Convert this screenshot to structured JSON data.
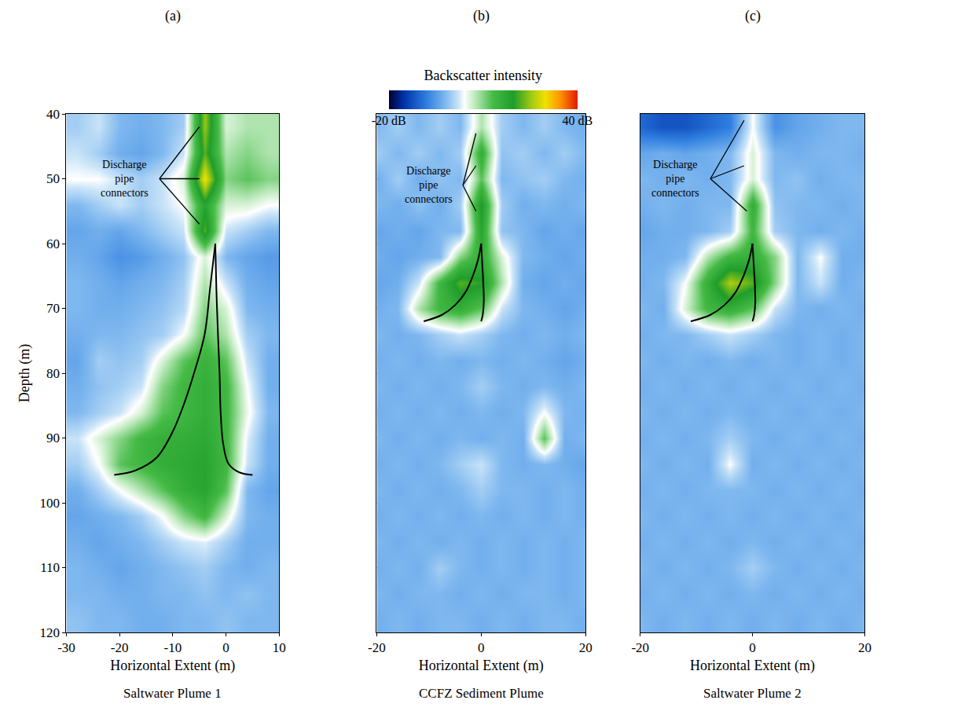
{
  "colorbar": {
    "title": "Backscatter intensity",
    "range": [
      -20,
      40
    ],
    "ticks": [
      {
        "value": -20,
        "label": "-20 dB"
      },
      {
        "value": 40,
        "label": "40 dB"
      }
    ]
  },
  "chart_data": [
    {
      "type": "heatmap",
      "panel": "(a)",
      "title": "Saltwater Plume 1",
      "xlabel": "Horizontal Extent (m)",
      "ylabel": "Depth (m)",
      "xlim": [
        -30,
        10
      ],
      "ylim": [
        120,
        40
      ],
      "xticks": [
        -30,
        -20,
        -10,
        0,
        10
      ],
      "yticks": [
        40,
        50,
        60,
        70,
        80,
        90,
        100,
        110,
        120
      ],
      "grid": true,
      "x": [
        -28,
        -24,
        -20,
        -16,
        -12,
        -8,
        -4,
        0,
        4,
        8
      ],
      "y": [
        42,
        46,
        50,
        54,
        58,
        62,
        66,
        70,
        74,
        78,
        82,
        86,
        90,
        94,
        98,
        102,
        106,
        110,
        114,
        118
      ],
      "z": [
        [
          0,
          2,
          -2,
          -3,
          -2,
          0,
          25,
          6,
          8,
          8
        ],
        [
          2,
          0,
          -3,
          -4,
          -2,
          2,
          22,
          8,
          10,
          8
        ],
        [
          4,
          4,
          2,
          0,
          2,
          6,
          30,
          10,
          12,
          10
        ],
        [
          -2,
          0,
          2,
          0,
          2,
          4,
          18,
          6,
          6,
          4
        ],
        [
          -4,
          -3,
          -4,
          -2,
          0,
          2,
          22,
          2,
          0,
          -2
        ],
        [
          -3,
          -4,
          -6,
          -5,
          -3,
          -1,
          6,
          -2,
          -4,
          -5
        ],
        [
          -2,
          -3,
          -4,
          -3,
          -2,
          0,
          8,
          2,
          -3,
          -4
        ],
        [
          -2,
          -3,
          -3,
          -2,
          -1,
          1,
          10,
          6,
          -2,
          -3
        ],
        [
          -3,
          -2,
          -2,
          -1,
          0,
          4,
          12,
          8,
          0,
          -2
        ],
        [
          -4,
          0,
          -1,
          0,
          6,
          12,
          15,
          12,
          2,
          -3
        ],
        [
          -3,
          -1,
          0,
          2,
          10,
          14,
          16,
          14,
          4,
          -3
        ],
        [
          -2,
          0,
          2,
          6,
          12,
          14,
          16,
          14,
          5,
          -2
        ],
        [
          2,
          6,
          10,
          14,
          16,
          16,
          17,
          14,
          3,
          -3
        ],
        [
          0,
          4,
          12,
          14,
          16,
          17,
          18,
          14,
          2,
          -3
        ],
        [
          -3,
          0,
          4,
          8,
          12,
          16,
          18,
          12,
          -2,
          -4
        ],
        [
          -4,
          -3,
          -2,
          0,
          4,
          10,
          14,
          6,
          -2,
          -3
        ],
        [
          -3,
          -4,
          -3,
          -2,
          0,
          2,
          3,
          0,
          -3,
          -3
        ],
        [
          -2,
          -3,
          -4,
          -3,
          -2,
          -1,
          0,
          -2,
          -3,
          -2
        ],
        [
          -2,
          -2,
          -3,
          -3,
          -2,
          -2,
          -1,
          -2,
          -1,
          -2
        ],
        [
          -1,
          -2,
          -2,
          -3,
          -3,
          -2,
          -2,
          -1,
          -2,
          -2
        ]
      ],
      "lines": [
        {
          "color": "#000000",
          "x": [
            -2,
            -3,
            -4,
            -6,
            -8,
            -10,
            -13,
            -17,
            -21
          ],
          "y": [
            60,
            67,
            74,
            80,
            85,
            89,
            93,
            95,
            95.7
          ]
        },
        {
          "color": "#000000",
          "x": [
            -2,
            -1.8,
            -1.5,
            -1.2,
            -1,
            -0.5,
            0.5,
            2.5,
            5
          ],
          "y": [
            60,
            67,
            74,
            80,
            86,
            91,
            94,
            95.3,
            95.7
          ]
        }
      ],
      "annotations": [
        {
          "text": "Discharge pipe connectors",
          "x": -19,
          "y": 50,
          "leader_from": [
            -12.5,
            50
          ],
          "targets": [
            [
              -5,
              42
            ],
            [
              -5,
              50
            ],
            [
              -5,
              57
            ]
          ]
        }
      ]
    },
    {
      "type": "heatmap",
      "panel": "(b)",
      "title": "CCFZ Sediment Plume",
      "xlabel": "Horizontal Extent (m)",
      "xlim": [
        -20,
        20
      ],
      "ylim": [
        120,
        40
      ],
      "xticks": [
        -20,
        0,
        20
      ],
      "yticks": [
        40,
        50,
        60,
        70,
        80,
        90,
        100,
        110,
        120
      ],
      "grid": true,
      "tick_labels": "x",
      "x": [
        -20,
        -16,
        -12,
        -8,
        -4,
        0,
        4,
        8,
        12,
        16,
        20
      ],
      "y": [
        42,
        46,
        50,
        54,
        58,
        62,
        66,
        70,
        74,
        78,
        82,
        86,
        90,
        94,
        98,
        102,
        106,
        110,
        114,
        118
      ],
      "z": [
        [
          -2,
          0,
          -2,
          0,
          -2,
          8,
          0,
          -2,
          0,
          -2,
          -3
        ],
        [
          0,
          -2,
          0,
          -2,
          0,
          16,
          -1,
          0,
          -2,
          0,
          -2
        ],
        [
          -3,
          0,
          -3,
          -1,
          -2,
          12,
          -2,
          -1,
          0,
          -2,
          -3
        ],
        [
          -2,
          -3,
          -1,
          -3,
          0,
          20,
          0,
          -3,
          -2,
          -3,
          -2
        ],
        [
          -4,
          -3,
          -4,
          -2,
          -2,
          18,
          -1,
          -2,
          -4,
          -3,
          -4
        ],
        [
          -3,
          -4,
          -3,
          -2,
          10,
          16,
          6,
          -2,
          -3,
          -4,
          -3
        ],
        [
          -4,
          -3,
          2,
          14,
          22,
          20,
          8,
          -3,
          -4,
          -3,
          -4
        ],
        [
          -3,
          -2,
          8,
          14,
          16,
          12,
          2,
          -2,
          -3,
          -4,
          -3
        ],
        [
          -2,
          -3,
          -2,
          0,
          2,
          0,
          -2,
          -3,
          -2,
          -3,
          -2
        ],
        [
          -3,
          -2,
          -3,
          -2,
          -3,
          -2,
          -3,
          -2,
          -3,
          -4,
          -3
        ],
        [
          -2,
          -3,
          -2,
          -3,
          -2,
          0,
          -2,
          -3,
          -2,
          -3,
          -2
        ],
        [
          -3,
          -2,
          -3,
          -2,
          -3,
          -2,
          -3,
          -2,
          4,
          -2,
          -3
        ],
        [
          -2,
          -3,
          -2,
          -3,
          -2,
          -3,
          -2,
          -3,
          12,
          -3,
          -2
        ],
        [
          -3,
          -2,
          -3,
          -2,
          0,
          2,
          -2,
          -3,
          -2,
          -3,
          -4
        ],
        [
          -2,
          -3,
          -2,
          -3,
          -2,
          0,
          -2,
          -2,
          -3,
          -2,
          -3
        ],
        [
          -3,
          -2,
          -3,
          -2,
          -3,
          -2,
          -3,
          -2,
          -3,
          -2,
          -3
        ],
        [
          -2,
          -3,
          -2,
          -3,
          -2,
          -3,
          -2,
          -3,
          -2,
          -3,
          -2
        ],
        [
          -3,
          -2,
          -3,
          0,
          -2,
          -3,
          -2,
          -3,
          -2,
          -3,
          -2
        ],
        [
          -2,
          -3,
          -2,
          -2,
          -3,
          -2,
          -3,
          -2,
          -2,
          -3,
          -2
        ],
        [
          -3,
          -2,
          -3,
          -2,
          -2,
          -3,
          -2,
          -3,
          -2,
          -2,
          -3
        ]
      ],
      "lines": [
        {
          "color": "#000000",
          "x": [
            0,
            -0.6,
            -1.6,
            -3,
            -5,
            -7.5,
            -11
          ],
          "y": [
            60,
            62.5,
            65,
            67.5,
            69.5,
            71,
            72
          ]
        },
        {
          "color": "#000000",
          "x": [
            0,
            0.2,
            0.4,
            0.5,
            0.3,
            0
          ],
          "y": [
            60,
            63,
            66,
            69,
            71,
            72
          ]
        }
      ],
      "annotations": [
        {
          "text": "Discharge pipe connectors",
          "x": -10,
          "y": 51,
          "leader_from": [
            -3.5,
            51
          ],
          "targets": [
            [
              -1,
              43
            ],
            [
              -1,
              48
            ],
            [
              -1,
              55
            ]
          ]
        }
      ]
    },
    {
      "type": "heatmap",
      "panel": "(c)",
      "title": "Saltwater Plume 2",
      "xlabel": "Horizontal Extent (m)",
      "xlim": [
        -20,
        20
      ],
      "ylim": [
        120,
        40
      ],
      "xticks": [
        -20,
        0,
        20
      ],
      "yticks": [
        40,
        50,
        60,
        70,
        80,
        90,
        100,
        110,
        120
      ],
      "grid": true,
      "tick_labels": "x",
      "x": [
        -20,
        -16,
        -12,
        -8,
        -4,
        0,
        4,
        8,
        12,
        16,
        20
      ],
      "y": [
        42,
        46,
        50,
        54,
        58,
        62,
        66,
        70,
        74,
        78,
        82,
        86,
        90,
        94,
        98,
        102,
        106,
        110,
        114,
        118
      ],
      "z": [
        [
          -10,
          -12,
          -12,
          -10,
          -8,
          4,
          -6,
          -4,
          -3,
          -2,
          -2
        ],
        [
          -4,
          -3,
          -4,
          -3,
          -2,
          6,
          -2,
          -3,
          -2,
          -2,
          -3
        ],
        [
          -2,
          -3,
          -2,
          -3,
          -2,
          6,
          -2,
          -1,
          -3,
          -2,
          -2
        ],
        [
          -3,
          -2,
          -3,
          -2,
          -2,
          16,
          -1,
          -2,
          -2,
          -3,
          -2
        ],
        [
          -4,
          -3,
          -3,
          -2,
          0,
          14,
          0,
          -2,
          -3,
          -2,
          -3
        ],
        [
          -3,
          -3,
          -2,
          8,
          14,
          16,
          10,
          -2,
          4,
          -3,
          -3
        ],
        [
          -3,
          -2,
          4,
          16,
          26,
          22,
          10,
          -2,
          2,
          -3,
          -2
        ],
        [
          -2,
          -3,
          6,
          14,
          16,
          12,
          2,
          -2,
          -3,
          -2,
          -3
        ],
        [
          -3,
          -2,
          -2,
          0,
          2,
          0,
          -2,
          -3,
          -2,
          -3,
          -2
        ],
        [
          -2,
          -3,
          -2,
          -3,
          -2,
          -3,
          -2,
          -3,
          -2,
          -3,
          -2
        ],
        [
          -3,
          -2,
          -3,
          -2,
          -3,
          -2,
          -3,
          -2,
          -3,
          -2,
          -3
        ],
        [
          -2,
          -3,
          -2,
          -3,
          -2,
          -3,
          -2,
          -3,
          -2,
          -3,
          -2
        ],
        [
          -3,
          -2,
          -3,
          -2,
          0,
          -2,
          -3,
          -2,
          -3,
          -2,
          -3
        ],
        [
          -2,
          -3,
          -2,
          -3,
          4,
          -3,
          -2,
          -3,
          -2,
          -3,
          -2
        ],
        [
          -3,
          -2,
          -3,
          -2,
          -2,
          -2,
          -3,
          -2,
          -3,
          -2,
          -3
        ],
        [
          -2,
          -3,
          -2,
          -3,
          -2,
          -3,
          -2,
          -3,
          -2,
          -3,
          -2
        ],
        [
          -3,
          -2,
          -3,
          -2,
          -3,
          -2,
          -3,
          -2,
          -3,
          -2,
          -3
        ],
        [
          -2,
          -3,
          -2,
          -3,
          -2,
          0,
          -2,
          -3,
          -2,
          -3,
          -2
        ],
        [
          -3,
          -2,
          -3,
          -2,
          -3,
          -2,
          -3,
          -2,
          -3,
          -2,
          -3
        ],
        [
          -2,
          -3,
          -2,
          -3,
          -2,
          -3,
          -2,
          -3,
          -2,
          -3,
          -2
        ]
      ],
      "lines": [
        {
          "color": "#000000",
          "x": [
            0,
            -0.6,
            -1.6,
            -3,
            -5,
            -7.5,
            -11
          ],
          "y": [
            60,
            62.5,
            65,
            67.5,
            69.5,
            71,
            72
          ]
        },
        {
          "color": "#000000",
          "x": [
            0,
            0.2,
            0.4,
            0.5,
            0.3,
            0
          ],
          "y": [
            60,
            63,
            66,
            69,
            71,
            72
          ]
        }
      ],
      "annotations": [
        {
          "text": "Discharge pipe connectors",
          "x": -13.7,
          "y": 50,
          "leader_from": [
            -7.5,
            50
          ],
          "targets": [
            [
              -1.5,
              41
            ],
            [
              -1.5,
              48
            ],
            [
              -1,
              55
            ]
          ]
        }
      ]
    }
  ]
}
